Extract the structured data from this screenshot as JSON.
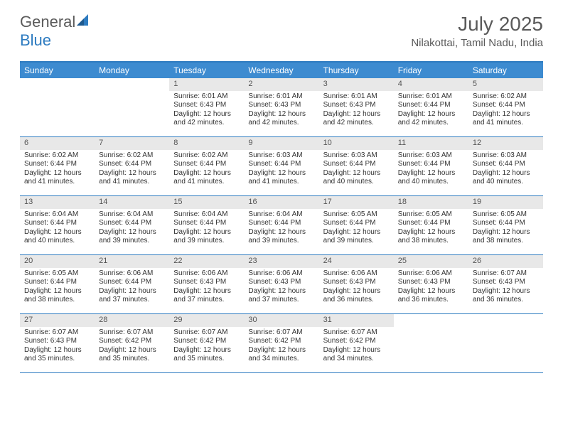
{
  "brand": {
    "part1": "General",
    "part2": "Blue"
  },
  "title": "July 2025",
  "location": "Nilakottai, Tamil Nadu, India",
  "colors": {
    "header_bar": "#3d8bd0",
    "border": "#2d7bc0",
    "daynum_bg": "#e8e8e8",
    "text": "#333333",
    "brand_gray": "#5a5a5a"
  },
  "dow": [
    "Sunday",
    "Monday",
    "Tuesday",
    "Wednesday",
    "Thursday",
    "Friday",
    "Saturday"
  ],
  "first_dow": 2,
  "days": [
    {
      "n": 1,
      "sr": "6:01 AM",
      "ss": "6:43 PM",
      "dl": "12 hours and 42 minutes."
    },
    {
      "n": 2,
      "sr": "6:01 AM",
      "ss": "6:43 PM",
      "dl": "12 hours and 42 minutes."
    },
    {
      "n": 3,
      "sr": "6:01 AM",
      "ss": "6:43 PM",
      "dl": "12 hours and 42 minutes."
    },
    {
      "n": 4,
      "sr": "6:01 AM",
      "ss": "6:44 PM",
      "dl": "12 hours and 42 minutes."
    },
    {
      "n": 5,
      "sr": "6:02 AM",
      "ss": "6:44 PM",
      "dl": "12 hours and 41 minutes."
    },
    {
      "n": 6,
      "sr": "6:02 AM",
      "ss": "6:44 PM",
      "dl": "12 hours and 41 minutes."
    },
    {
      "n": 7,
      "sr": "6:02 AM",
      "ss": "6:44 PM",
      "dl": "12 hours and 41 minutes."
    },
    {
      "n": 8,
      "sr": "6:02 AM",
      "ss": "6:44 PM",
      "dl": "12 hours and 41 minutes."
    },
    {
      "n": 9,
      "sr": "6:03 AM",
      "ss": "6:44 PM",
      "dl": "12 hours and 41 minutes."
    },
    {
      "n": 10,
      "sr": "6:03 AM",
      "ss": "6:44 PM",
      "dl": "12 hours and 40 minutes."
    },
    {
      "n": 11,
      "sr": "6:03 AM",
      "ss": "6:44 PM",
      "dl": "12 hours and 40 minutes."
    },
    {
      "n": 12,
      "sr": "6:03 AM",
      "ss": "6:44 PM",
      "dl": "12 hours and 40 minutes."
    },
    {
      "n": 13,
      "sr": "6:04 AM",
      "ss": "6:44 PM",
      "dl": "12 hours and 40 minutes."
    },
    {
      "n": 14,
      "sr": "6:04 AM",
      "ss": "6:44 PM",
      "dl": "12 hours and 39 minutes."
    },
    {
      "n": 15,
      "sr": "6:04 AM",
      "ss": "6:44 PM",
      "dl": "12 hours and 39 minutes."
    },
    {
      "n": 16,
      "sr": "6:04 AM",
      "ss": "6:44 PM",
      "dl": "12 hours and 39 minutes."
    },
    {
      "n": 17,
      "sr": "6:05 AM",
      "ss": "6:44 PM",
      "dl": "12 hours and 39 minutes."
    },
    {
      "n": 18,
      "sr": "6:05 AM",
      "ss": "6:44 PM",
      "dl": "12 hours and 38 minutes."
    },
    {
      "n": 19,
      "sr": "6:05 AM",
      "ss": "6:44 PM",
      "dl": "12 hours and 38 minutes."
    },
    {
      "n": 20,
      "sr": "6:05 AM",
      "ss": "6:44 PM",
      "dl": "12 hours and 38 minutes."
    },
    {
      "n": 21,
      "sr": "6:06 AM",
      "ss": "6:44 PM",
      "dl": "12 hours and 37 minutes."
    },
    {
      "n": 22,
      "sr": "6:06 AM",
      "ss": "6:43 PM",
      "dl": "12 hours and 37 minutes."
    },
    {
      "n": 23,
      "sr": "6:06 AM",
      "ss": "6:43 PM",
      "dl": "12 hours and 37 minutes."
    },
    {
      "n": 24,
      "sr": "6:06 AM",
      "ss": "6:43 PM",
      "dl": "12 hours and 36 minutes."
    },
    {
      "n": 25,
      "sr": "6:06 AM",
      "ss": "6:43 PM",
      "dl": "12 hours and 36 minutes."
    },
    {
      "n": 26,
      "sr": "6:07 AM",
      "ss": "6:43 PM",
      "dl": "12 hours and 36 minutes."
    },
    {
      "n": 27,
      "sr": "6:07 AM",
      "ss": "6:43 PM",
      "dl": "12 hours and 35 minutes."
    },
    {
      "n": 28,
      "sr": "6:07 AM",
      "ss": "6:42 PM",
      "dl": "12 hours and 35 minutes."
    },
    {
      "n": 29,
      "sr": "6:07 AM",
      "ss": "6:42 PM",
      "dl": "12 hours and 35 minutes."
    },
    {
      "n": 30,
      "sr": "6:07 AM",
      "ss": "6:42 PM",
      "dl": "12 hours and 34 minutes."
    },
    {
      "n": 31,
      "sr": "6:07 AM",
      "ss": "6:42 PM",
      "dl": "12 hours and 34 minutes."
    }
  ],
  "labels": {
    "sunrise": "Sunrise:",
    "sunset": "Sunset:",
    "daylight": "Daylight:"
  }
}
